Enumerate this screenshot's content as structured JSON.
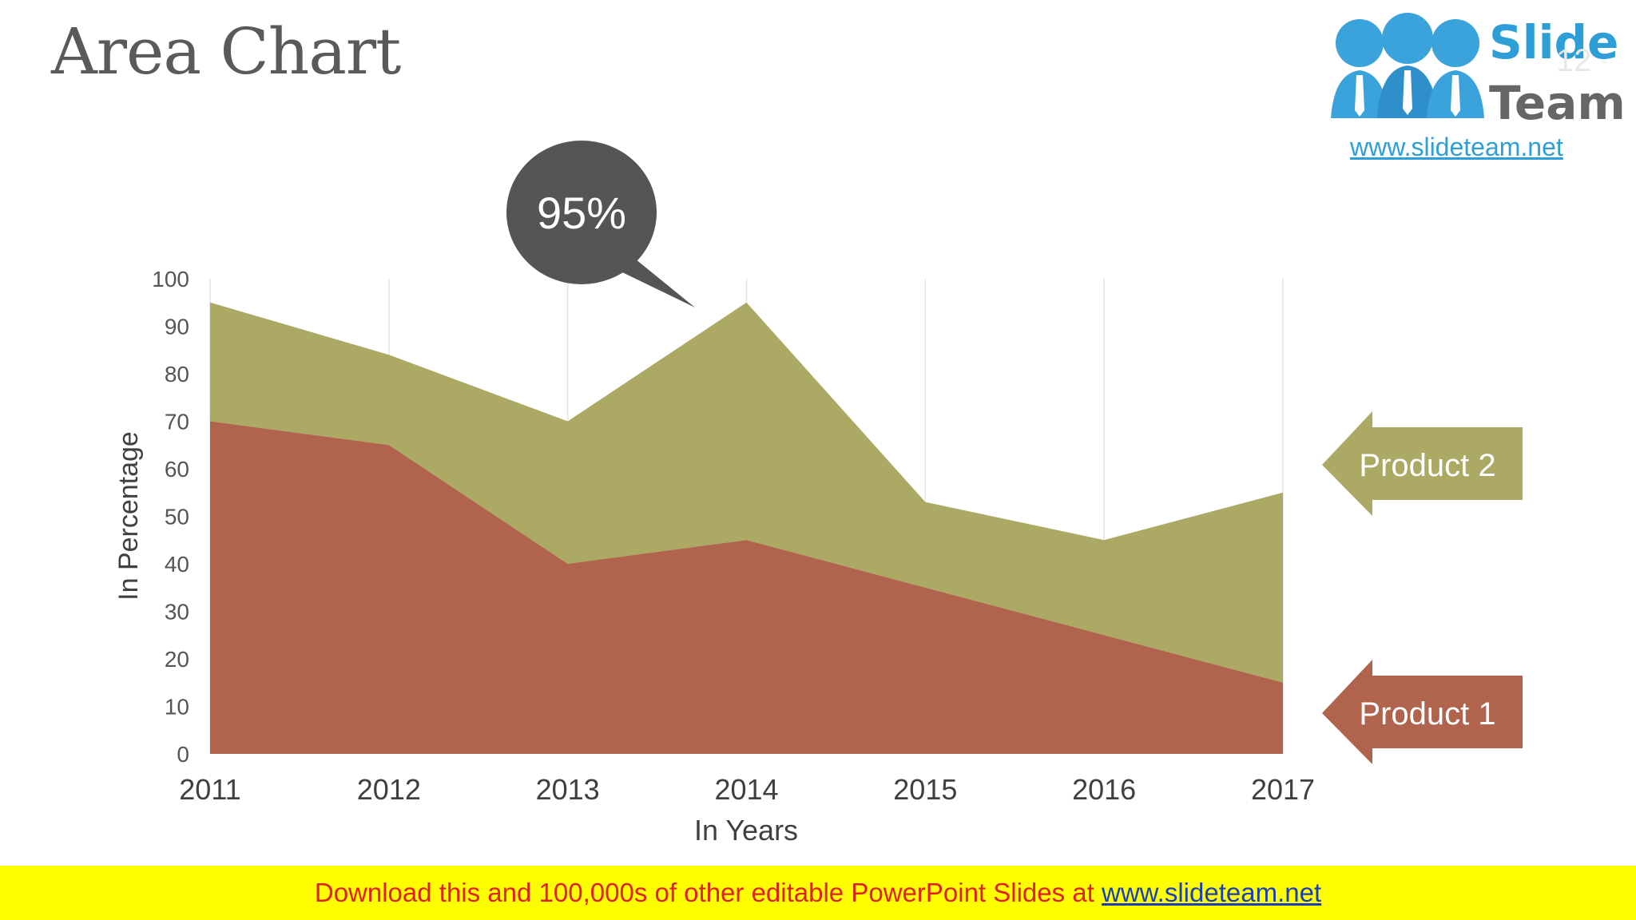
{
  "slide": {
    "title": "Area Chart",
    "page_number": "12"
  },
  "logo": {
    "line1": "Slide",
    "line2": "Team",
    "url": "www.slideteam.net"
  },
  "callout": {
    "text": "95%"
  },
  "labels": {
    "product2": "Product 2",
    "product1": "Product 1"
  },
  "colors": {
    "product1": "#b0644e",
    "product2": "#aba963",
    "callout": "#555555",
    "text": "#5a5a5a"
  },
  "footer": {
    "text": "Download this and 100,000s of other editable PowerPoint Slides at ",
    "link": "www.slideteam.net"
  },
  "chart_data": {
    "type": "area",
    "stacked": true,
    "x": [
      "2011",
      "2012",
      "2013",
      "2014",
      "2015",
      "2016",
      "2017"
    ],
    "series": [
      {
        "name": "Product 1",
        "values": [
          70,
          65,
          40,
          45,
          35,
          25,
          15
        ]
      },
      {
        "name": "Product 2",
        "values": [
          25,
          19,
          30,
          50,
          18,
          20,
          40
        ]
      }
    ],
    "totals": [
      95,
      84,
      70,
      95,
      53,
      45,
      55
    ],
    "xlabel": "In Years",
    "ylabel": "In Percentage",
    "ylim": [
      0,
      100
    ],
    "yticks": [
      "0",
      "10",
      "20",
      "30",
      "40",
      "50",
      "60",
      "70",
      "80",
      "90",
      "100"
    ],
    "grid": "vertical",
    "annotation": "95%"
  }
}
